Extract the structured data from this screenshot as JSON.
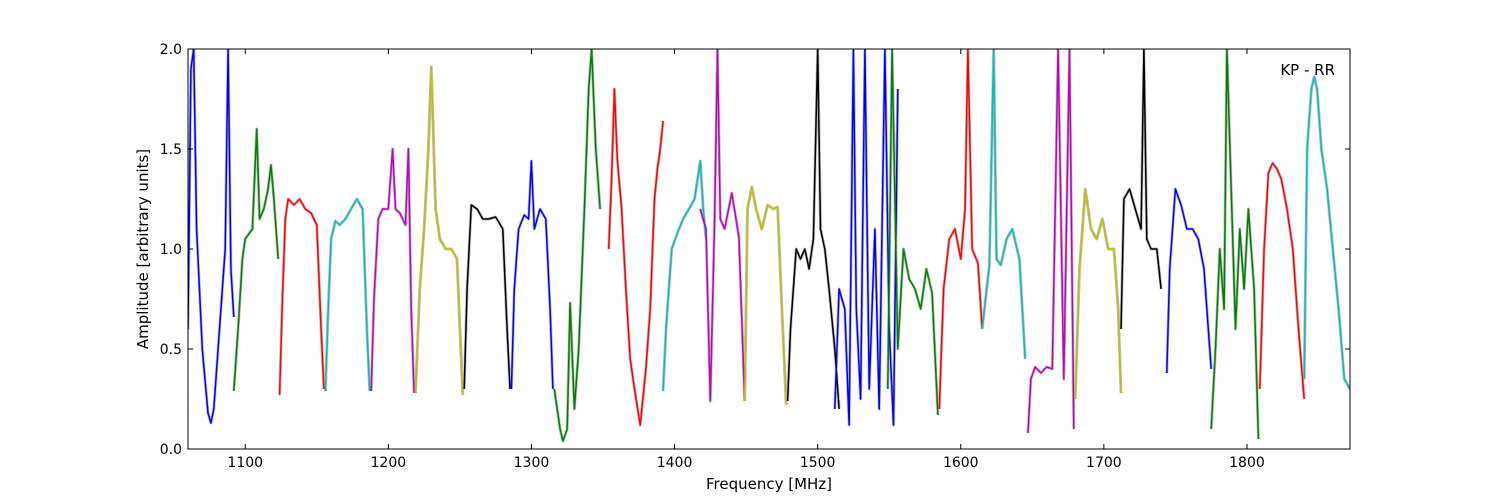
{
  "chart_data": {
    "type": "line",
    "title": "",
    "xlabel": "Frequency [MHz]",
    "ylabel": "Amplitude [arbitrary units]",
    "annotation": "KP - RR",
    "annotation_position": "top-right",
    "xlim": [
      1060,
      1872
    ],
    "ylim": [
      0.0,
      2.0
    ],
    "x_ticks": [
      1100,
      1200,
      1300,
      1400,
      1500,
      1600,
      1700,
      1800
    ],
    "x_tick_labels": [
      "1100",
      "1200",
      "1300",
      "1400",
      "1500",
      "1600",
      "1700",
      "1800"
    ],
    "y_ticks": [
      0.0,
      0.5,
      1.0,
      1.5,
      2.0
    ],
    "y_tick_labels": [
      "0.0",
      "0.5",
      "1.0",
      "1.5",
      "2.0"
    ],
    "grid": false,
    "legend": "none",
    "background_color": "#c0c0c0",
    "series": [
      {
        "color": "#0000ff",
        "x": [
          1060,
          1062,
          1064,
          1066,
          1070,
          1074,
          1076,
          1078,
          1082,
          1086,
          1088,
          1090,
          1092
        ],
        "y": [
          0.6,
          1.9,
          2.0,
          1.1,
          0.5,
          0.18,
          0.13,
          0.2,
          0.6,
          1.0,
          2.0,
          0.9,
          0.66
        ]
      },
      {
        "color": "#008000",
        "x": [
          1092,
          1095,
          1098,
          1100,
          1103,
          1105,
          1108,
          1110,
          1113,
          1116,
          1118,
          1120,
          1123
        ],
        "y": [
          0.29,
          0.6,
          0.95,
          1.05,
          1.08,
          1.1,
          1.6,
          1.15,
          1.2,
          1.3,
          1.42,
          1.25,
          0.95
        ]
      },
      {
        "color": "#ff0000",
        "x": [
          1124,
          1126,
          1128,
          1130,
          1134,
          1138,
          1142,
          1146,
          1150,
          1153,
          1155
        ],
        "y": [
          0.27,
          0.75,
          1.15,
          1.25,
          1.22,
          1.25,
          1.2,
          1.18,
          1.12,
          0.6,
          0.3
        ]
      },
      {
        "color": "#00bfbf",
        "x": [
          1156,
          1158,
          1160,
          1163,
          1166,
          1170,
          1174,
          1178,
          1182,
          1185,
          1187
        ],
        "y": [
          0.29,
          0.7,
          1.05,
          1.14,
          1.12,
          1.15,
          1.2,
          1.25,
          1.2,
          0.6,
          0.29
        ]
      },
      {
        "color": "#bf00bf",
        "x": [
          1188,
          1190,
          1193,
          1196,
          1200,
          1203,
          1205,
          1208,
          1212,
          1214,
          1216,
          1218
        ],
        "y": [
          0.29,
          0.75,
          1.15,
          1.2,
          1.2,
          1.5,
          1.2,
          1.18,
          1.12,
          1.5,
          0.7,
          0.28
        ]
      },
      {
        "color": "#bfbf00",
        "x": [
          1219,
          1222,
          1225,
          1228,
          1230,
          1233,
          1236,
          1240,
          1244,
          1248,
          1250,
          1252
        ],
        "y": [
          0.28,
          0.8,
          1.1,
          1.5,
          1.91,
          1.2,
          1.05,
          1.0,
          1.0,
          0.95,
          0.6,
          0.27
        ]
      },
      {
        "color": "#000000",
        "x": [
          1253,
          1255,
          1258,
          1262,
          1266,
          1270,
          1275,
          1280,
          1283,
          1285
        ],
        "y": [
          0.3,
          0.8,
          1.22,
          1.2,
          1.15,
          1.15,
          1.16,
          1.1,
          0.6,
          0.3
        ]
      },
      {
        "color": "#0000ff",
        "x": [
          1286,
          1288,
          1291,
          1295,
          1298,
          1300,
          1302,
          1306,
          1310,
          1313,
          1315
        ],
        "y": [
          0.3,
          0.8,
          1.1,
          1.17,
          1.15,
          1.44,
          1.1,
          1.2,
          1.15,
          0.7,
          0.3
        ]
      },
      {
        "color": "#008000",
        "x": [
          1316,
          1320,
          1322,
          1325,
          1327,
          1330,
          1333,
          1337,
          1340,
          1342,
          1345,
          1348
        ],
        "y": [
          0.3,
          0.1,
          0.04,
          0.1,
          0.73,
          0.2,
          0.5,
          1.2,
          1.8,
          2.0,
          1.5,
          1.2
        ]
      },
      {
        "color": "#ff0000",
        "x": [
          1354,
          1356,
          1358,
          1360,
          1363,
          1366,
          1369,
          1372,
          1376,
          1380,
          1383,
          1386,
          1388,
          1390,
          1392
        ],
        "y": [
          1.0,
          1.35,
          1.8,
          1.45,
          1.2,
          0.8,
          0.45,
          0.3,
          0.12,
          0.4,
          0.7,
          1.25,
          1.4,
          1.5,
          1.64
        ]
      },
      {
        "color": "#00bfbf",
        "x": [
          1392,
          1394,
          1398,
          1402,
          1406,
          1410,
          1414,
          1418,
          1420,
          1422
        ],
        "y": [
          0.29,
          0.6,
          1.0,
          1.08,
          1.15,
          1.2,
          1.25,
          1.44,
          1.2,
          1.05
        ]
      },
      {
        "color": "#bf00bf",
        "x": [
          1418,
          1422,
          1425,
          1428,
          1430,
          1432,
          1435,
          1440,
          1445,
          1449
        ],
        "y": [
          1.2,
          1.1,
          0.24,
          1.15,
          2.0,
          1.15,
          1.1,
          1.28,
          1.06,
          0.24
        ]
      },
      {
        "color": "#bfbf00",
        "x": [
          1449,
          1451,
          1454,
          1457,
          1461,
          1465,
          1469,
          1472,
          1475,
          1478
        ],
        "y": [
          0.24,
          1.2,
          1.31,
          1.2,
          1.1,
          1.22,
          1.2,
          1.21,
          0.7,
          0.22
        ]
      },
      {
        "color": "#000000",
        "x": [
          1479,
          1481,
          1485,
          1488,
          1491,
          1494,
          1497,
          1500,
          1502,
          1505,
          1508,
          1512,
          1515
        ],
        "y": [
          0.24,
          0.6,
          1.0,
          0.95,
          1.0,
          0.9,
          1.05,
          2.0,
          1.1,
          1.0,
          0.8,
          0.5,
          0.2
        ]
      },
      {
        "color": "#0000ff",
        "x": [
          1512,
          1515,
          1519,
          1522,
          1525,
          1527,
          1530,
          1533,
          1536,
          1540,
          1543,
          1547,
          1550,
          1553,
          1556
        ],
        "y": [
          0.2,
          0.8,
          0.7,
          0.12,
          2.0,
          0.7,
          0.25,
          2.0,
          0.3,
          1.1,
          0.2,
          2.0,
          0.6,
          0.12,
          1.8
        ]
      },
      {
        "color": "#008000",
        "x": [
          1549,
          1552,
          1556,
          1560,
          1564,
          1568,
          1572,
          1576,
          1580,
          1584
        ],
        "y": [
          0.3,
          2.0,
          0.5,
          1.0,
          0.85,
          0.8,
          0.7,
          0.9,
          0.78,
          0.17
        ]
      },
      {
        "color": "#ff0000",
        "x": [
          1585,
          1588,
          1592,
          1596,
          1600,
          1603,
          1605,
          1608,
          1612,
          1615
        ],
        "y": [
          0.2,
          0.8,
          1.05,
          1.1,
          0.95,
          1.2,
          2.0,
          1.0,
          0.93,
          0.6
        ]
      },
      {
        "color": "#00bfbf",
        "x": [
          1615,
          1620,
          1623,
          1625,
          1628,
          1632,
          1636,
          1641,
          1645
        ],
        "y": [
          0.6,
          0.92,
          2.0,
          0.95,
          0.92,
          1.05,
          1.1,
          0.95,
          0.45
        ]
      },
      {
        "color": "#bf00bf",
        "x": [
          1647,
          1649,
          1652,
          1656,
          1660,
          1664,
          1668,
          1672,
          1676,
          1679
        ],
        "y": [
          0.08,
          0.35,
          0.41,
          0.38,
          0.41,
          0.4,
          2.0,
          0.35,
          2.0,
          0.1
        ]
      },
      {
        "color": "#bfbf00",
        "x": [
          1680,
          1683,
          1687,
          1691,
          1695,
          1699,
          1703,
          1707,
          1710,
          1712
        ],
        "y": [
          0.25,
          0.9,
          1.3,
          1.1,
          1.05,
          1.15,
          1.0,
          1.0,
          0.7,
          0.28
        ]
      },
      {
        "color": "#000000",
        "x": [
          1712,
          1714,
          1718,
          1722,
          1726,
          1728,
          1730,
          1733,
          1737,
          1740
        ],
        "y": [
          0.6,
          1.25,
          1.3,
          1.2,
          1.1,
          2.0,
          1.05,
          1.0,
          1.0,
          0.8
        ]
      },
      {
        "color": "#0000ff",
        "x": [
          1744,
          1746,
          1750,
          1754,
          1758,
          1762,
          1766,
          1770,
          1773,
          1775
        ],
        "y": [
          0.38,
          0.9,
          1.3,
          1.22,
          1.1,
          1.1,
          1.05,
          0.9,
          0.6,
          0.4
        ]
      },
      {
        "color": "#008000",
        "x": [
          1775,
          1778,
          1781,
          1784,
          1786,
          1789,
          1792,
          1795,
          1798,
          1801,
          1805,
          1808
        ],
        "y": [
          0.1,
          0.5,
          1.0,
          0.7,
          2.0,
          1.3,
          0.6,
          1.1,
          0.8,
          1.2,
          0.8,
          0.05
        ]
      },
      {
        "color": "#ff0000",
        "x": [
          1809,
          1812,
          1815,
          1818,
          1821,
          1824,
          1828,
          1832,
          1836,
          1840
        ],
        "y": [
          0.3,
          1.0,
          1.38,
          1.43,
          1.4,
          1.35,
          1.2,
          1.0,
          0.6,
          0.25
        ]
      },
      {
        "color": "#00bfbf",
        "x": [
          1840,
          1842,
          1845,
          1847,
          1849,
          1852,
          1856,
          1860,
          1864,
          1868,
          1872
        ],
        "y": [
          0.35,
          1.5,
          1.8,
          1.86,
          1.8,
          1.5,
          1.3,
          1.0,
          0.7,
          0.35,
          0.3
        ]
      }
    ]
  }
}
